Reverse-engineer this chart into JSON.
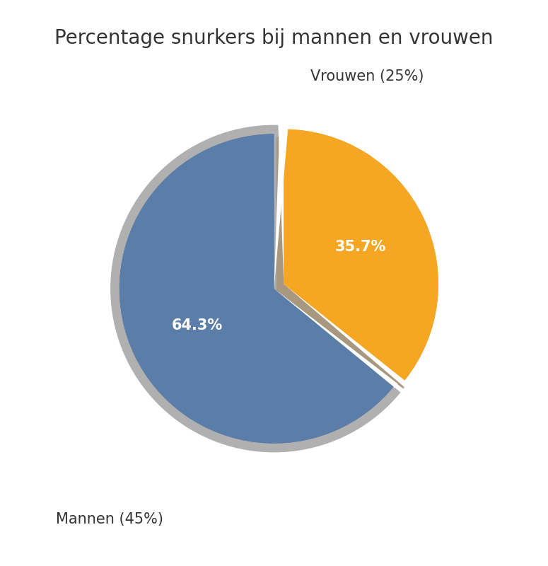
{
  "title": "Percentage snurkers bij mannen en vrouwen",
  "slices": [
    35.7,
    64.3
  ],
  "labels": [
    "Vrouwen (25%)",
    "Mannen (45%)"
  ],
  "autopct_labels": [
    "35.7%",
    "64.3%"
  ],
  "colors": [
    "#F5A623",
    "#5B7EA8"
  ],
  "shadow_color": "#B0B0B0",
  "tan_color": "#A89880",
  "explode_orange": [
    0.06,
    0.06
  ],
  "explode_blue": [
    0.0,
    0.0
  ],
  "startangle": 90,
  "title_fontsize": 20,
  "label_fontsize": 15,
  "autopct_fontsize": 15,
  "background_color": "#FFFFFF"
}
